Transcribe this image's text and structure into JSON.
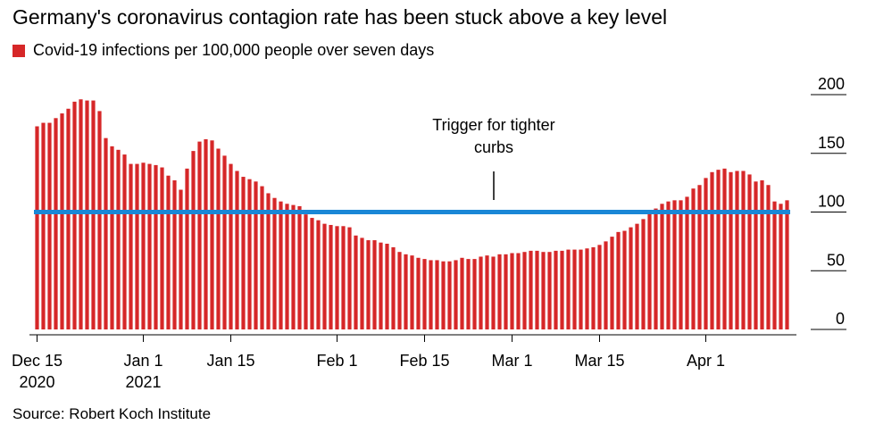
{
  "title": "Germany's coronavirus contagion rate has been stuck above a key level",
  "source": "Source: Robert Koch Institute",
  "colors": {
    "bar": "#d62728",
    "threshold": "#1a87d6",
    "axis": "#000000"
  },
  "chart_data": {
    "type": "bar",
    "title": "Germany's coronavirus contagion rate has been stuck above a key level",
    "series": [
      {
        "name": "Covid-19 infections per 100,000 people over seven days"
      }
    ],
    "ylim": [
      0,
      200
    ],
    "yticks": [
      0,
      50,
      100,
      150,
      200
    ],
    "grid": false,
    "legend": "top-left",
    "x_start": "2020-12-15",
    "x_end": "2021-04-10",
    "x_tick_labels": [
      {
        "date": "2020-12-15",
        "line1": "Dec 15",
        "line2": "2020"
      },
      {
        "date": "2021-01-01",
        "line1": "Jan 1",
        "line2": "2021"
      },
      {
        "date": "2021-01-15",
        "line1": "Jan 15",
        "line2": ""
      },
      {
        "date": "2021-02-01",
        "line1": "Feb 1",
        "line2": ""
      },
      {
        "date": "2021-02-15",
        "line1": "Feb 15",
        "line2": ""
      },
      {
        "date": "2021-03-01",
        "line1": "Mar 1",
        "line2": ""
      },
      {
        "date": "2021-03-15",
        "line1": "Mar 15",
        "line2": ""
      },
      {
        "date": "2021-04-01",
        "line1": "Apr 1",
        "line2": ""
      }
    ],
    "values": [
      173,
      176,
      176,
      180,
      184,
      188,
      194,
      196,
      195,
      195,
      186,
      163,
      156,
      153,
      149,
      141,
      141,
      142,
      141,
      140,
      138,
      131,
      127,
      119,
      137,
      152,
      160,
      162,
      161,
      154,
      148,
      141,
      135,
      130,
      128,
      126,
      122,
      116,
      112,
      109,
      107,
      106,
      105,
      98,
      95,
      93,
      90,
      89,
      88,
      88,
      87,
      80,
      78,
      76,
      76,
      74,
      73,
      70,
      66,
      64,
      63,
      61,
      60,
      59,
      59,
      58,
      58,
      59,
      61,
      60,
      60,
      62,
      63,
      62,
      64,
      64,
      65,
      65,
      66,
      67,
      67,
      66,
      66,
      67,
      67,
      68,
      68,
      68,
      69,
      70,
      72,
      75,
      79,
      83,
      84,
      87,
      90,
      94,
      100,
      103,
      107,
      109,
      110,
      110,
      113,
      120,
      123,
      129,
      134,
      136,
      137,
      134,
      135,
      135,
      132,
      126,
      127,
      123,
      109,
      107,
      110
    ],
    "threshold": {
      "value": 100,
      "label_line1": "Trigger for tighter",
      "label_line2": "curbs"
    }
  }
}
